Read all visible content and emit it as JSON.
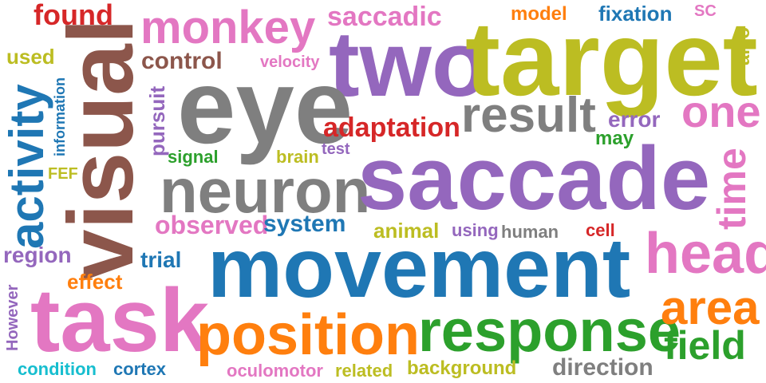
{
  "words": [
    {
      "text": "found",
      "color": "#d62728"
    },
    {
      "text": "monkey",
      "color": "#e377c2"
    },
    {
      "text": "saccadic",
      "color": "#e377c2"
    },
    {
      "text": "model",
      "color": "#ff7f0e"
    },
    {
      "text": "fixation",
      "color": "#1f77b4"
    },
    {
      "text": "SC",
      "color": "#e377c2"
    },
    {
      "text": "used",
      "color": "#bcbd22"
    },
    {
      "text": "control",
      "color": "#8c564b"
    },
    {
      "text": "velocity",
      "color": "#e377c2"
    },
    {
      "text": "two",
      "color": "#9467bd"
    },
    {
      "text": "target",
      "color": "#bcbd22"
    },
    {
      "text": "also",
      "color": "#bcbd22"
    },
    {
      "text": "information",
      "color": "#1f77b4"
    },
    {
      "text": "eye",
      "color": "#7f7f7f"
    },
    {
      "text": "result",
      "color": "#7f7f7f"
    },
    {
      "text": "one",
      "color": "#e377c2"
    },
    {
      "text": "activity",
      "color": "#1f77b4"
    },
    {
      "text": "visual",
      "color": "#8c564b"
    },
    {
      "text": "pursuit",
      "color": "#9467bd"
    },
    {
      "text": "adaptation",
      "color": "#d62728"
    },
    {
      "text": "error",
      "color": "#9467bd"
    },
    {
      "text": "may",
      "color": "#2ca02c"
    },
    {
      "text": "time",
      "color": "#e377c2"
    },
    {
      "text": "signal",
      "color": "#2ca02c"
    },
    {
      "text": "brain",
      "color": "#bcbd22"
    },
    {
      "text": "test",
      "color": "#9467bd"
    },
    {
      "text": "FEF",
      "color": "#bcbd22"
    },
    {
      "text": "neuron",
      "color": "#7f7f7f"
    },
    {
      "text": "saccade",
      "color": "#9467bd"
    },
    {
      "text": "observed",
      "color": "#e377c2"
    },
    {
      "text": "system",
      "color": "#1f77b4"
    },
    {
      "text": "animal",
      "color": "#bcbd22"
    },
    {
      "text": "using",
      "color": "#9467bd"
    },
    {
      "text": "human",
      "color": "#7f7f7f"
    },
    {
      "text": "cell",
      "color": "#d62728"
    },
    {
      "text": "head",
      "color": "#e377c2"
    },
    {
      "text": "region",
      "color": "#9467bd"
    },
    {
      "text": "trial",
      "color": "#1f77b4"
    },
    {
      "text": "movement",
      "color": "#1f77b4"
    },
    {
      "text": "effect",
      "color": "#ff7f0e"
    },
    {
      "text": "However",
      "color": "#9467bd"
    },
    {
      "text": "task",
      "color": "#e377c2"
    },
    {
      "text": "position",
      "color": "#ff7f0e"
    },
    {
      "text": "response",
      "color": "#2ca02c"
    },
    {
      "text": "area",
      "color": "#ff7f0e"
    },
    {
      "text": "field",
      "color": "#2ca02c"
    },
    {
      "text": "condition",
      "color": "#17becf"
    },
    {
      "text": "cortex",
      "color": "#1f77b4"
    },
    {
      "text": "oculomotor",
      "color": "#e377c2"
    },
    {
      "text": "related",
      "color": "#bcbd22"
    },
    {
      "text": "background",
      "color": "#bcbd22"
    },
    {
      "text": "direction",
      "color": "#7f7f7f"
    }
  ]
}
